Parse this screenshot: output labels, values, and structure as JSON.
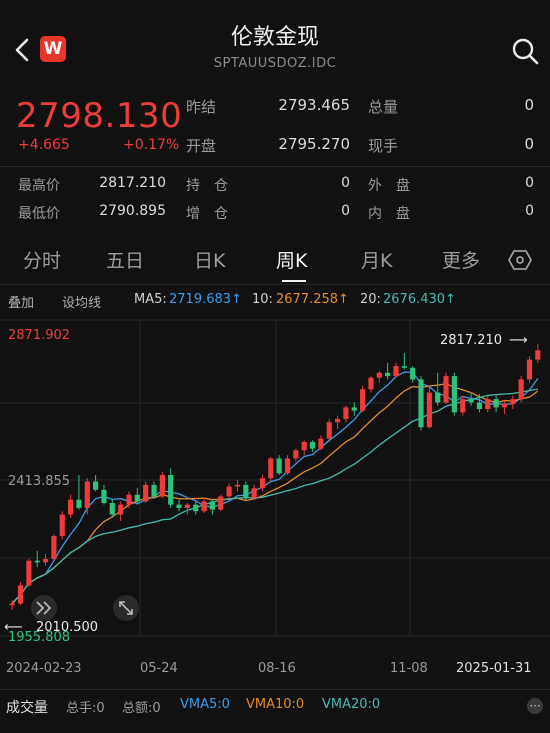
{
  "header": {
    "title": "伦敦金现",
    "symbol": "SPTAUUSDOZ.IDC",
    "logo_text": "W"
  },
  "quote": {
    "price": "2798.130",
    "change": "+4.665",
    "change_pct": "+0.17%",
    "prev_close_label": "昨结",
    "prev_close": "2793.465",
    "open_label": "开盘",
    "open": "2795.270",
    "total_vol_label": "总量",
    "total_vol": "0",
    "cur_hand_label": "现手",
    "cur_hand": "0",
    "high_label": "最高价",
    "high": "2817.210",
    "low_label": "最低价",
    "low": "2790.895",
    "hold_label": "持　仓",
    "hold": "0",
    "add_label": "增　仓",
    "add": "0",
    "outer_label": "外　盘",
    "outer": "0",
    "inner_label": "内　盘",
    "inner": "0"
  },
  "tabs": [
    "分时",
    "五日",
    "日K",
    "周K",
    "月K",
    "更多"
  ],
  "active_tab": "周K",
  "indicators": {
    "overlay": "叠加",
    "set_ma": "设均线",
    "ma5_label": "MA5:",
    "ma5": "2719.683↑",
    "ma10_label": "10:",
    "ma10": "2677.258↑",
    "ma20_label": "20:",
    "ma20": "2676.430↑"
  },
  "chart_data": {
    "type": "candlestick",
    "y_top_label": "2871.902",
    "y_mid_label": "2413.855",
    "y_bottom_label": "1955.808",
    "ylim": [
      1955.808,
      2871.902
    ],
    "x_ticks": [
      "2024-02-23",
      "05-24",
      "08-16",
      "11-08",
      "2025-01-31"
    ],
    "max_annotation": "2817.210",
    "min_annotation": "2010.500",
    "candles": [
      [
        2025,
        2040,
        2010.5,
        2030
      ],
      [
        2030,
        2095,
        2025,
        2085
      ],
      [
        2085,
        2165,
        2080,
        2160
      ],
      [
        2160,
        2190,
        2140,
        2155
      ],
      [
        2155,
        2180,
        2145,
        2165
      ],
      [
        2165,
        2240,
        2160,
        2235
      ],
      [
        2235,
        2310,
        2225,
        2300
      ],
      [
        2300,
        2360,
        2290,
        2345
      ],
      [
        2345,
        2420,
        2315,
        2320
      ],
      [
        2320,
        2410,
        2300,
        2400
      ],
      [
        2400,
        2420,
        2370,
        2375
      ],
      [
        2375,
        2390,
        2330,
        2335
      ],
      [
        2335,
        2345,
        2290,
        2300
      ],
      [
        2300,
        2340,
        2280,
        2330
      ],
      [
        2330,
        2370,
        2320,
        2360
      ],
      [
        2360,
        2380,
        2330,
        2340
      ],
      [
        2340,
        2400,
        2335,
        2390
      ],
      [
        2390,
        2400,
        2350,
        2355
      ],
      [
        2355,
        2430,
        2350,
        2420
      ],
      [
        2420,
        2440,
        2320,
        2330
      ],
      [
        2330,
        2345,
        2310,
        2320
      ],
      [
        2320,
        2335,
        2300,
        2330
      ],
      [
        2330,
        2340,
        2300,
        2310
      ],
      [
        2310,
        2350,
        2305,
        2340
      ],
      [
        2340,
        2345,
        2300,
        2315
      ],
      [
        2315,
        2360,
        2310,
        2355
      ],
      [
        2355,
        2395,
        2345,
        2385
      ],
      [
        2385,
        2405,
        2370,
        2390
      ],
      [
        2390,
        2400,
        2340,
        2350
      ],
      [
        2350,
        2390,
        2345,
        2380
      ],
      [
        2380,
        2420,
        2370,
        2410
      ],
      [
        2410,
        2475,
        2400,
        2470
      ],
      [
        2470,
        2480,
        2420,
        2425
      ],
      [
        2425,
        2480,
        2420,
        2470
      ],
      [
        2470,
        2500,
        2460,
        2495
      ],
      [
        2495,
        2525,
        2480,
        2520
      ],
      [
        2520,
        2525,
        2490,
        2500
      ],
      [
        2500,
        2540,
        2495,
        2530
      ],
      [
        2530,
        2590,
        2520,
        2580
      ],
      [
        2580,
        2600,
        2560,
        2590
      ],
      [
        2590,
        2630,
        2580,
        2625
      ],
      [
        2625,
        2640,
        2600,
        2615
      ],
      [
        2615,
        2690,
        2610,
        2680
      ],
      [
        2680,
        2720,
        2670,
        2715
      ],
      [
        2715,
        2735,
        2700,
        2730
      ],
      [
        2730,
        2760,
        2710,
        2720
      ],
      [
        2720,
        2760,
        2715,
        2750
      ],
      [
        2750,
        2790,
        2740,
        2745
      ],
      [
        2745,
        2750,
        2700,
        2710
      ],
      [
        2710,
        2720,
        2555,
        2565
      ],
      [
        2565,
        2690,
        2560,
        2670
      ],
      [
        2670,
        2730,
        2630,
        2640
      ],
      [
        2640,
        2730,
        2635,
        2720
      ],
      [
        2720,
        2730,
        2600,
        2610
      ],
      [
        2610,
        2660,
        2600,
        2650
      ],
      [
        2650,
        2670,
        2630,
        2640
      ],
      [
        2640,
        2665,
        2610,
        2620
      ],
      [
        2620,
        2660,
        2610,
        2650
      ],
      [
        2650,
        2660,
        2610,
        2625
      ],
      [
        2625,
        2645,
        2605,
        2635
      ],
      [
        2635,
        2660,
        2620,
        2650
      ],
      [
        2650,
        2720,
        2640,
        2710
      ],
      [
        2710,
        2780,
        2700,
        2770
      ],
      [
        2770,
        2817.21,
        2760,
        2798.13
      ]
    ]
  },
  "volume": {
    "title": "成交量",
    "total_hands": "总手:0",
    "total_amount": "总额:0",
    "vma5": "VMA5:0",
    "vma10": "VMA10:0",
    "vma20": "VMA20:0"
  },
  "colors": {
    "up": "#ee3b3b",
    "down": "#2ec27a",
    "ma5": "#3a9be8",
    "ma10": "#e38a2c",
    "ma20": "#48b8b0"
  }
}
